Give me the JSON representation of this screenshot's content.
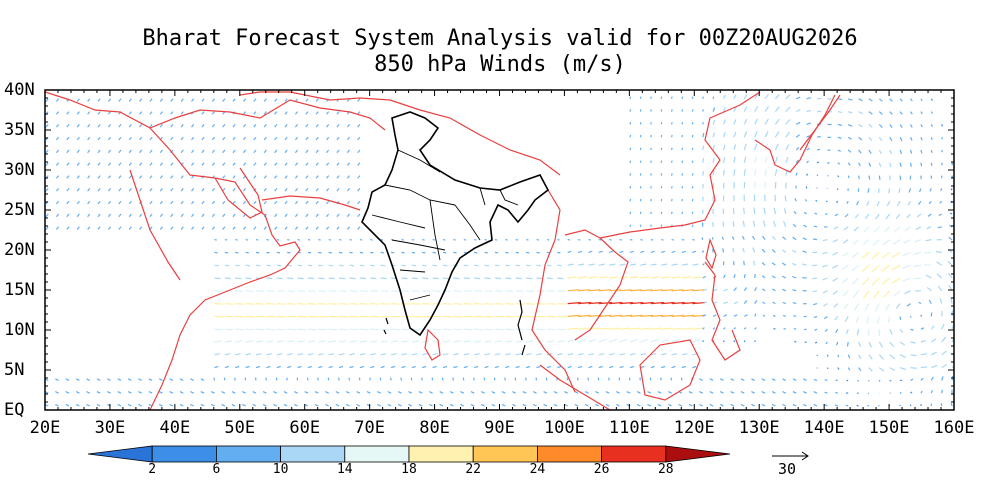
{
  "title_line1": "Bharat Forecast System Analysis valid for 00Z20AUG2026",
  "title_line2": "850 hPa Winds (m/s)",
  "map": {
    "lon_range": [
      20,
      160
    ],
    "lat_range": [
      0,
      40
    ],
    "lon_ticks": [
      "20E",
      "30E",
      "40E",
      "50E",
      "60E",
      "70E",
      "80E",
      "90E",
      "100E",
      "110E",
      "120E",
      "130E",
      "140E",
      "150E",
      "160E"
    ],
    "lat_ticks": [
      "EQ",
      "5N",
      "10N",
      "15N",
      "20N",
      "25N",
      "30N",
      "35N",
      "40N"
    ]
  },
  "colorbar": {
    "labels": [
      "2",
      "6",
      "10",
      "14",
      "18",
      "22",
      "24",
      "26",
      "28"
    ],
    "colors": [
      "#2a74d8",
      "#3c8ee6",
      "#62aef0",
      "#a9d7f5",
      "#e6f8f6",
      "#fff2b0",
      "#ffc655",
      "#ff8a2a",
      "#e83020",
      "#aa0e0e"
    ]
  },
  "reference_vector": {
    "value": "30"
  },
  "colors": {
    "coast": "#e84040",
    "india": "#000000",
    "frame": "#000000"
  }
}
